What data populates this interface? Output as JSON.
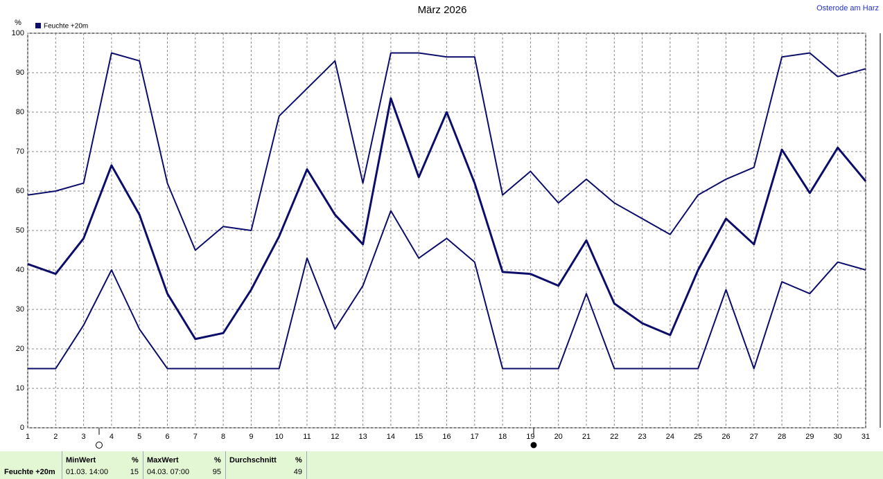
{
  "chart_data": {
    "type": "line",
    "title": "März 2026",
    "location": "Osterode am Harz",
    "y_label": "%",
    "x": [
      1,
      2,
      3,
      4,
      5,
      6,
      7,
      8,
      9,
      10,
      11,
      12,
      13,
      14,
      15,
      16,
      17,
      18,
      19,
      20,
      21,
      22,
      23,
      24,
      25,
      26,
      27,
      28,
      29,
      30,
      31
    ],
    "xlim": [
      1,
      31
    ],
    "xticks": [
      1,
      2,
      3,
      4,
      5,
      6,
      7,
      8,
      9,
      10,
      11,
      12,
      13,
      14,
      15,
      16,
      17,
      18,
      19,
      20,
      21,
      22,
      23,
      24,
      25,
      26,
      27,
      28,
      29,
      30,
      31
    ],
    "ylim": [
      0,
      100
    ],
    "yticks": [
      0,
      10,
      20,
      30,
      40,
      50,
      60,
      70,
      80,
      90,
      100
    ],
    "grid": true,
    "series": [
      {
        "name": "Feuchte +20m",
        "color": "#0c0c6a",
        "values": [
          41.5,
          39,
          48,
          66.5,
          54,
          34,
          22.5,
          24,
          35,
          48.5,
          65.5,
          54,
          46.5,
          83.5,
          63.5,
          80,
          62,
          39.5,
          39,
          36,
          47.5,
          31.5,
          26.5,
          23.5,
          40,
          53,
          46.5,
          70.5,
          59.5,
          71,
          62.5
        ]
      },
      {
        "color": "#0c0c6a",
        "values": [
          59,
          60,
          62,
          95,
          93,
          62,
          45,
          51,
          50,
          79,
          86,
          93,
          62,
          95,
          95,
          94,
          94,
          59,
          65,
          57,
          63,
          57,
          53,
          49,
          59,
          63,
          66,
          94,
          95,
          89,
          91
        ]
      },
      {
        "color": "#0c0c6a",
        "values": [
          15,
          15,
          26,
          40,
          25,
          15,
          15,
          15,
          15,
          15,
          43,
          25,
          36,
          55,
          43,
          48,
          42,
          15,
          15,
          15,
          34,
          15,
          15,
          15,
          15,
          35,
          15,
          37,
          34,
          42,
          40
        ]
      }
    ]
  },
  "summary": {
    "label": "Feuchte +20m",
    "min": {
      "header": "MinWert",
      "unit": "%",
      "date": "01.03. 14:00",
      "value": 15
    },
    "max": {
      "header": "MaxWert",
      "unit": "%",
      "date": "04.03. 07:00",
      "value": 95
    },
    "avg": {
      "header": "Durchschnitt",
      "unit": "%",
      "value": 49
    }
  }
}
